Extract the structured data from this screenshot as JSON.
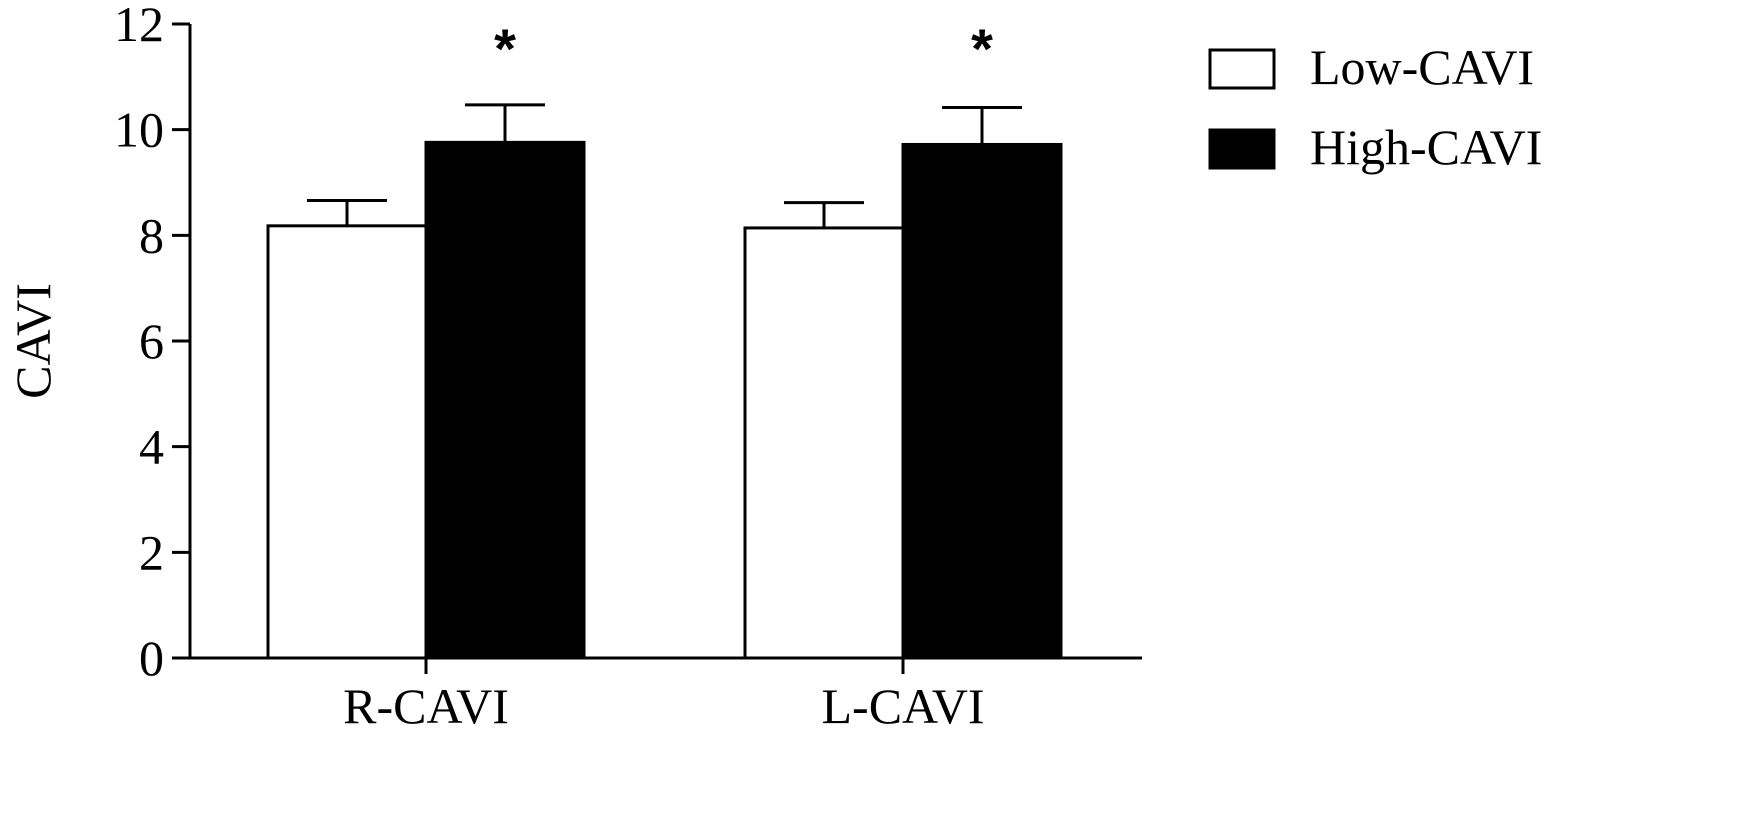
{
  "chart_data": {
    "type": "bar",
    "title": "",
    "xlabel": "",
    "ylabel": "CAVI",
    "ylim": [
      0,
      12
    ],
    "yticks": [
      0,
      2,
      4,
      6,
      8,
      10,
      12
    ],
    "categories": [
      "R-CAVI",
      "L-CAVI"
    ],
    "series": [
      {
        "name": "Low-CAVI",
        "values": [
          8.18,
          8.14
        ],
        "errors": [
          0.48,
          0.48
        ],
        "fill": "#ffffff"
      },
      {
        "name": "High-CAVI",
        "values": [
          9.76,
          9.72
        ],
        "errors": [
          0.71,
          0.7
        ],
        "fill": "#000000"
      }
    ],
    "significance": [
      "*",
      "*"
    ],
    "legend": {
      "position": "top-right"
    },
    "grid": false
  }
}
